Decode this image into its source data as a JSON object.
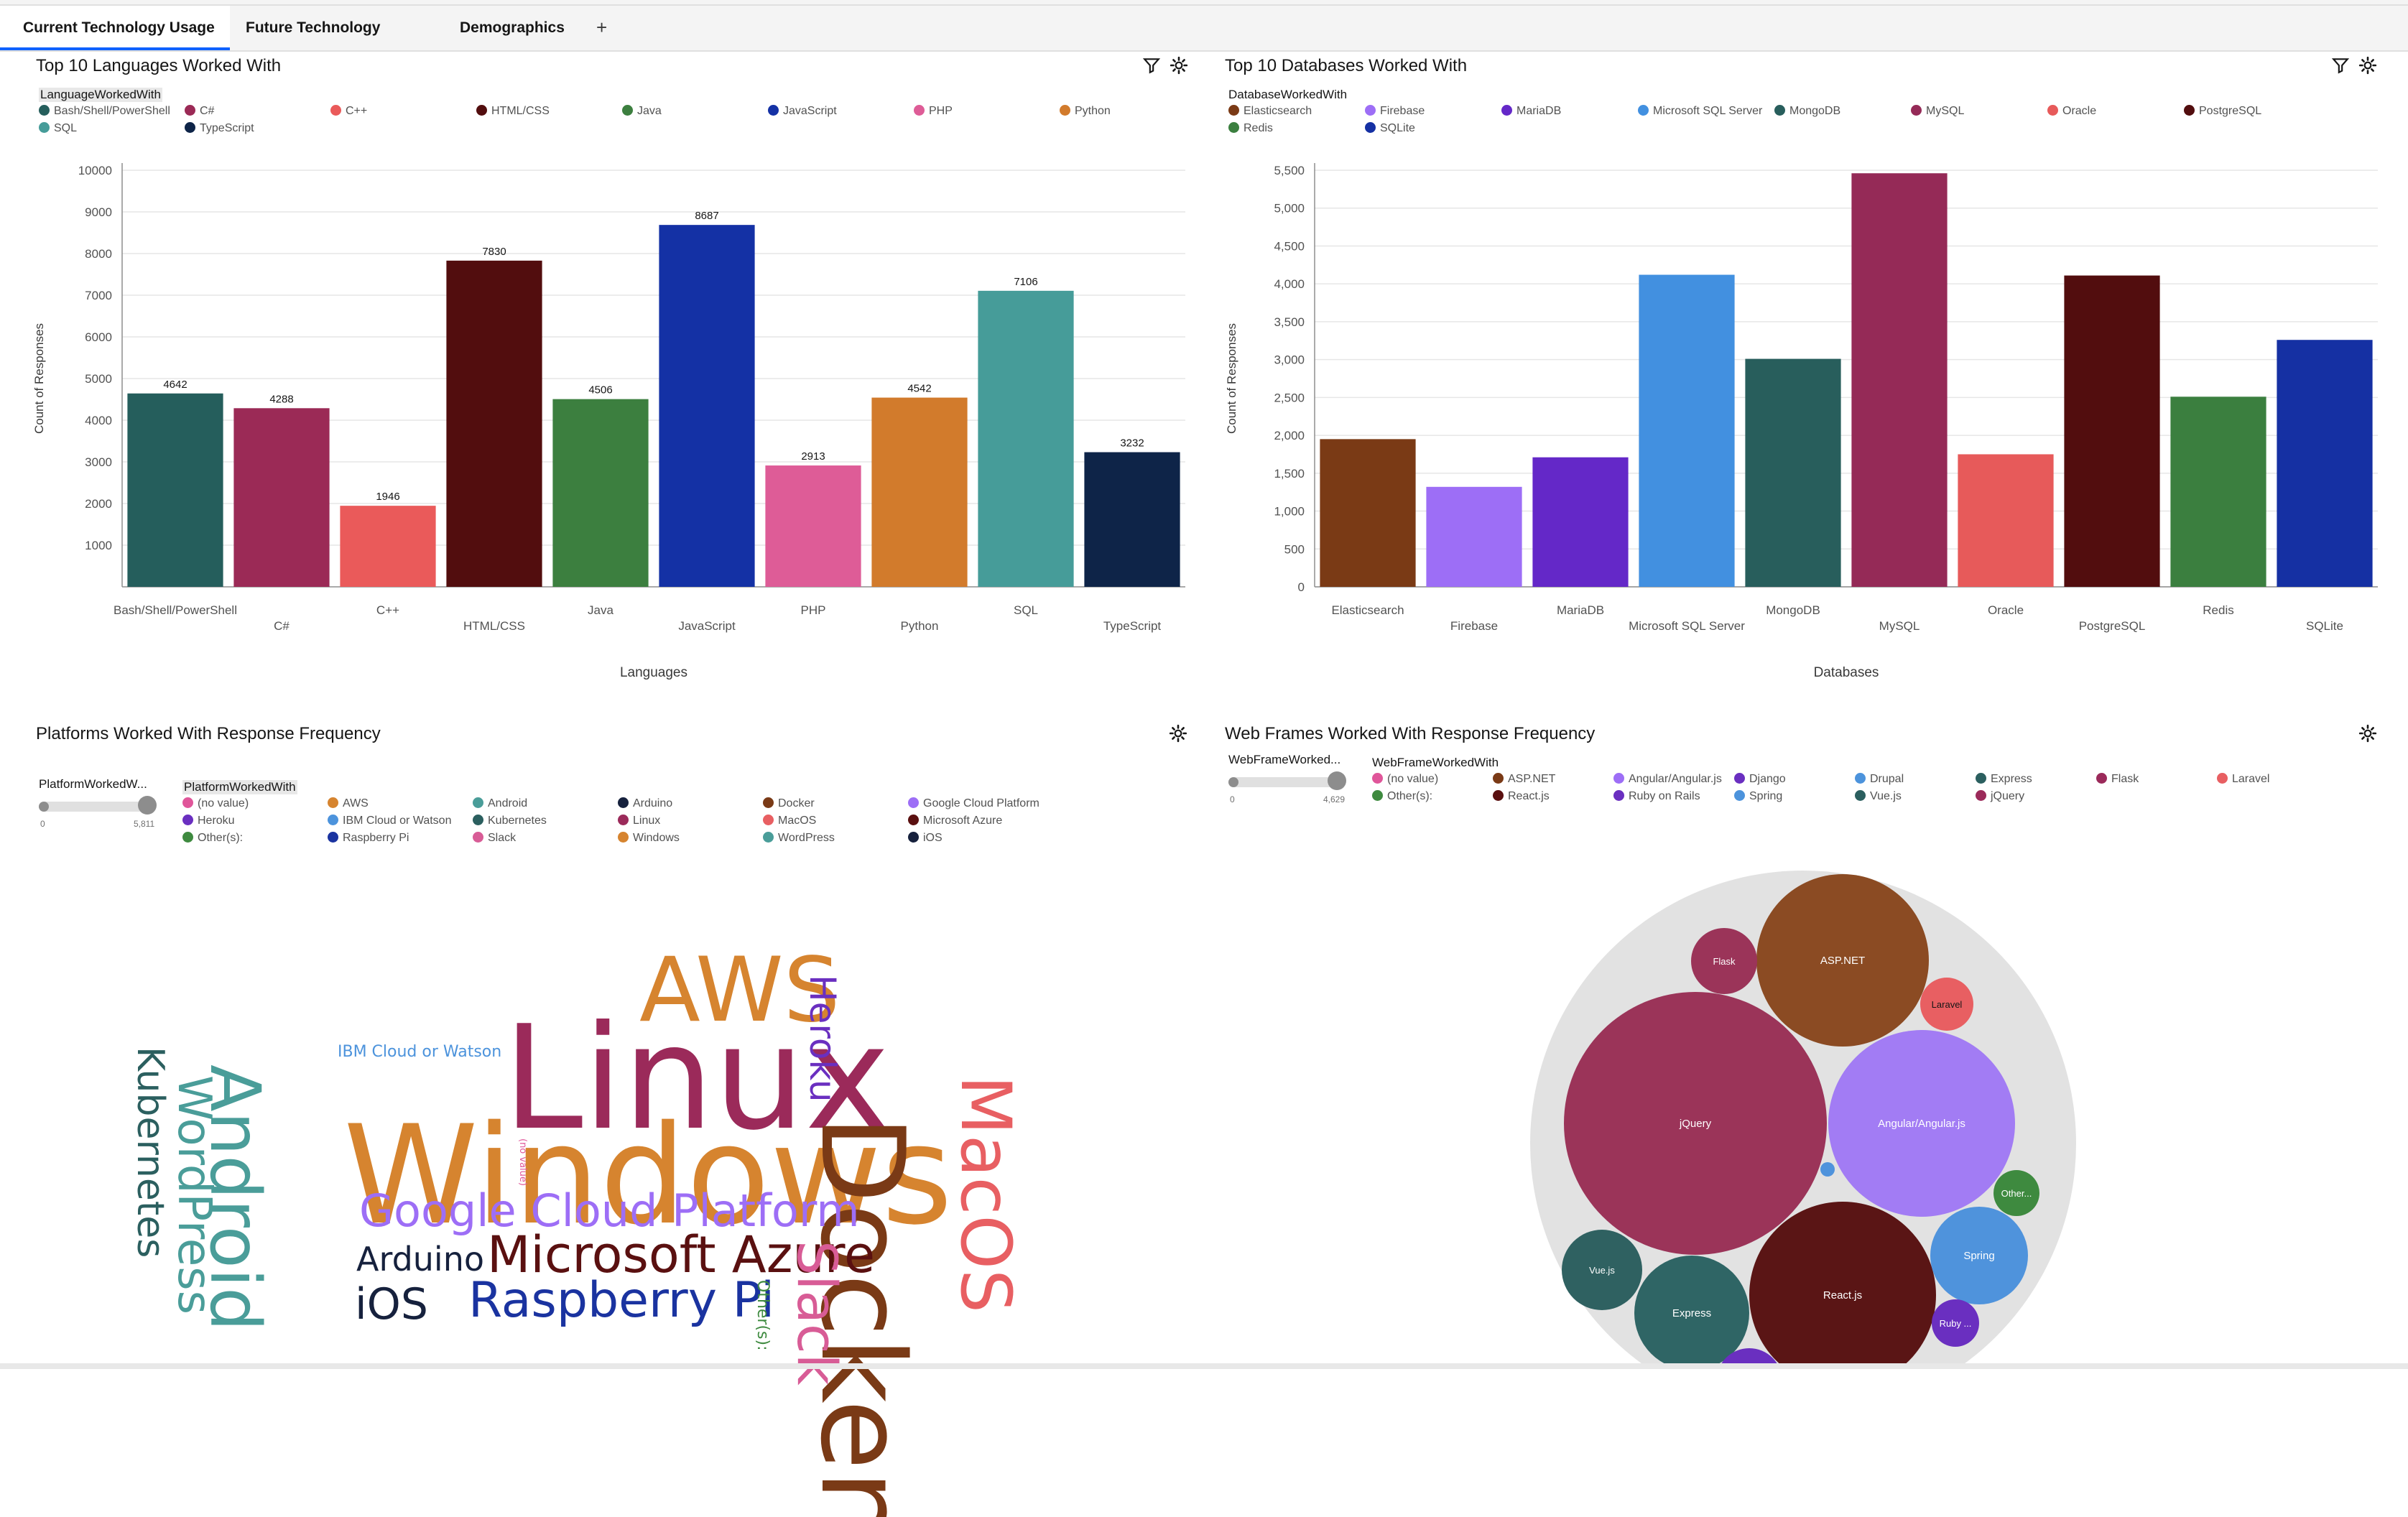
{
  "tabs": [
    {
      "label": "Current Technology Usage",
      "active": true
    },
    {
      "label": "Future Technology Trend",
      "active": false
    },
    {
      "label": "Demographics",
      "active": false
    }
  ],
  "add_tab_symbol": "+",
  "icons": {
    "filter": "filter-icon",
    "settings": "settings-icon"
  },
  "colors": {
    "Bash/Shell/PowerShell": "#255e5c",
    "C#": "#9b2a56",
    "C++": "#ea5a5a",
    "HTML/CSS": "#520d0e",
    "Java": "#3c7f3f",
    "JavaScript": "#1431a5",
    "PHP": "#de5c97",
    "Python": "#d27b2c",
    "SQL": "#469c99",
    "TypeScript": "#0e2448",
    "Elasticsearch": "#7a3a15",
    "Firebase": "#9d6ef6",
    "MariaDB": "#6428c8",
    "Microsoft SQL Server": "#4290e0",
    "MongoDB": "#285e5c",
    "MySQL": "#952a57",
    "Oracle": "#e75a5a",
    "PostgreSQL": "#520d0e",
    "Redis": "#3b7f3f",
    "SQLite": "#1530a3"
  },
  "languages_chart": {
    "title": "Top 10 Languages Worked With",
    "legend_title": "LanguageWorkedWith",
    "legend_items": [
      "Bash/Shell/PowerShell",
      "C#",
      "C++",
      "HTML/CSS",
      "Java",
      "JavaScript",
      "PHP",
      "Python",
      "SQL",
      "TypeScript"
    ]
  },
  "databases_chart": {
    "title": "Top 10 Databases Worked With",
    "legend_title": "DatabaseWorkedWith",
    "legend_items": [
      "Elasticsearch",
      "Firebase",
      "MariaDB",
      "Microsoft SQL Server",
      "MongoDB",
      "MySQL",
      "Oracle",
      "PostgreSQL",
      "Redis",
      "SQLite"
    ]
  },
  "platforms_panel": {
    "title": "Platforms Worked With Response Frequency",
    "slider_label": "PlatformWorkedW...",
    "slider_min": "0",
    "slider_max": "5,811",
    "legend_title": "PlatformWorkedWith",
    "legend_items": [
      {
        "label": "(no value)",
        "color": "#e0569a"
      },
      {
        "label": "AWS",
        "color": "#d6842f"
      },
      {
        "label": "Android",
        "color": "#4a9d99"
      },
      {
        "label": "Arduino",
        "color": "#16213d"
      },
      {
        "label": "Docker",
        "color": "#7a3a16"
      },
      {
        "label": "Google Cloud Platform",
        "color": "#9d6ef6"
      },
      {
        "label": "Heroku",
        "color": "#6a2fc0"
      },
      {
        "label": "IBM Cloud or Watson",
        "color": "#4c93dc"
      },
      {
        "label": "Kubernetes",
        "color": "#2b5f5f"
      },
      {
        "label": "Linux",
        "color": "#9b2a5a"
      },
      {
        "label": "MacOS",
        "color": "#e85f62"
      },
      {
        "label": "Microsoft Azure",
        "color": "#5a1010"
      },
      {
        "label": "Other(s):",
        "color": "#3e8a3f"
      },
      {
        "label": "Raspberry Pi",
        "color": "#1a33a0"
      },
      {
        "label": "Slack",
        "color": "#d85c96"
      },
      {
        "label": "Windows",
        "color": "#d6842f"
      },
      {
        "label": "WordPress",
        "color": "#4a9d99"
      },
      {
        "label": "iOS",
        "color": "#16213d"
      }
    ]
  },
  "webframes_panel": {
    "title": "Web Frames Worked With Response Frequency",
    "slider_label": "WebFrameWorked...",
    "slider_min": "0",
    "slider_max": "4,629",
    "legend_title": "WebFrameWorkedWith",
    "legend_items": [
      {
        "label": "(no value)",
        "color": "#e0569a"
      },
      {
        "label": "ASP.NET",
        "color": "#7a3a16"
      },
      {
        "label": "Angular/Angular.js",
        "color": "#9d6ef6"
      },
      {
        "label": "Django",
        "color": "#6a2fc0"
      },
      {
        "label": "Drupal",
        "color": "#4c93dc"
      },
      {
        "label": "Express",
        "color": "#2b5f5f"
      },
      {
        "label": "Flask",
        "color": "#9b2a5a"
      },
      {
        "label": "Laravel",
        "color": "#e85f62"
      },
      {
        "label": "Other(s):",
        "color": "#3e8a3f"
      },
      {
        "label": "React.js",
        "color": "#5a1010"
      },
      {
        "label": "Ruby on Rails",
        "color": "#6a2fc0"
      },
      {
        "label": "Spring",
        "color": "#4c93dc"
      },
      {
        "label": "Vue.js",
        "color": "#2b5f5f"
      },
      {
        "label": "jQuery",
        "color": "#9b2a5a"
      }
    ]
  },
  "word_cloud": [
    {
      "text": "Linux",
      "color": "#9b2a5a"
    },
    {
      "text": "Windows",
      "color": "#d6842f"
    },
    {
      "text": "AWS",
      "color": "#d6842f"
    },
    {
      "text": "Docker",
      "color": "#7a3a16"
    },
    {
      "text": "MacOS",
      "color": "#e85f62"
    },
    {
      "text": "Android",
      "color": "#4a9d99"
    },
    {
      "text": "WordPress",
      "color": "#4a9d99"
    },
    {
      "text": "Kubernetes",
      "color": "#2b5f5f"
    },
    {
      "text": "Google Cloud Platform",
      "color": "#9d6ef6"
    },
    {
      "text": "Microsoft Azure",
      "color": "#5a1010"
    },
    {
      "text": "Raspberry Pi",
      "color": "#1a33a0"
    },
    {
      "text": "Arduino",
      "color": "#16213d"
    },
    {
      "text": "iOS",
      "color": "#16213d"
    },
    {
      "text": "Slack",
      "color": "#d85c96"
    },
    {
      "text": "Heroku",
      "color": "#6a2fc0"
    },
    {
      "text": "IBM Cloud or Watson",
      "color": "#4c93dc"
    },
    {
      "text": "Other(s):",
      "color": "#3e8a3f"
    },
    {
      "text": "(no value)",
      "color": "#e0569a"
    }
  ],
  "bubbles": [
    {
      "label": "jQuery",
      "color": "#9b3459"
    },
    {
      "label": "Angular/Angular.js",
      "color": "#a27cf4"
    },
    {
      "label": "ASP.NET",
      "color": "#8b4b23"
    },
    {
      "label": "React.js",
      "color": "#5a1515"
    },
    {
      "label": "Express",
      "color": "#2f6565"
    },
    {
      "label": "Spring",
      "color": "#4f93dc"
    },
    {
      "label": "Vue.js",
      "color": "#2f6161"
    },
    {
      "label": "Django",
      "color": "#6a2fc0"
    },
    {
      "label": "Flask",
      "color": "#9b3459"
    },
    {
      "label": "Laravel",
      "color": "#e85f62"
    },
    {
      "label": "Other...",
      "color": "#3e8a3f"
    },
    {
      "label": "Ruby ...",
      "color": "#6a2fc0"
    },
    {
      "label": "",
      "color": "#4f93dc"
    }
  ],
  "chart_data": [
    {
      "type": "bar",
      "title": "Top 10 Languages Worked With",
      "xlabel": "Languages",
      "ylabel": "Count of Responses",
      "categories": [
        "Bash/Shell/PowerShell",
        "C#",
        "C++",
        "HTML/CSS",
        "Java",
        "JavaScript",
        "PHP",
        "Python",
        "SQL",
        "TypeScript"
      ],
      "values": [
        4642,
        4288,
        1946,
        7830,
        4506,
        8687,
        2913,
        4542,
        7106,
        3232
      ],
      "data_labels": true,
      "ylim": [
        0,
        10000
      ],
      "yticks": [
        1000,
        2000,
        3000,
        4000,
        5000,
        6000,
        7000,
        8000,
        9000,
        10000
      ],
      "ytick_labels": [
        "1000",
        "2000",
        "3000",
        "4000",
        "5000",
        "6000",
        "7000",
        "8000",
        "9000",
        "10000"
      ],
      "grid": true,
      "legend": "top-left"
    },
    {
      "type": "bar",
      "title": "Top 10 Databases Worked With",
      "xlabel": "Databases",
      "ylabel": "Count of Responses",
      "categories": [
        "Elasticsearch",
        "Firebase",
        "MariaDB",
        "Microsoft SQL Server",
        "MongoDB",
        "MySQL",
        "Oracle",
        "PostgreSQL",
        "Redis",
        "SQLite"
      ],
      "values": [
        1950,
        1320,
        1710,
        4120,
        3010,
        5460,
        1750,
        4110,
        2510,
        3260
      ],
      "data_labels": false,
      "ylim": [
        0,
        5500
      ],
      "yticks": [
        0,
        500,
        1000,
        1500,
        2000,
        2500,
        3000,
        3500,
        4000,
        4500,
        5000,
        5500
      ],
      "ytick_labels": [
        "0",
        "500",
        "1,000",
        "1,500",
        "2,000",
        "2,500",
        "3,000",
        "3,500",
        "4,000",
        "4,500",
        "5,000",
        "5,500"
      ],
      "grid": true,
      "legend": "top-left"
    }
  ]
}
